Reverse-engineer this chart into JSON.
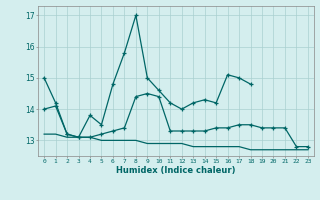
{
  "x": [
    0,
    1,
    2,
    3,
    4,
    5,
    6,
    7,
    8,
    9,
    10,
    11,
    12,
    13,
    14,
    15,
    16,
    17,
    18,
    19,
    20,
    21,
    22,
    23
  ],
  "line1": [
    15.0,
    14.2,
    13.2,
    13.1,
    13.8,
    13.5,
    14.8,
    15.8,
    17.0,
    15.0,
    14.6,
    14.2,
    14.0,
    14.2,
    14.3,
    14.2,
    15.1,
    15.0,
    14.8,
    null,
    null,
    null,
    null,
    null
  ],
  "line2": [
    14.0,
    14.1,
    13.2,
    13.1,
    13.1,
    13.2,
    13.3,
    13.4,
    14.4,
    14.5,
    14.4,
    13.3,
    13.3,
    13.3,
    13.3,
    13.4,
    13.4,
    13.5,
    13.5,
    13.4,
    13.4,
    13.4,
    12.8,
    12.8
  ],
  "line3": [
    13.2,
    13.2,
    13.1,
    13.1,
    13.1,
    13.0,
    13.0,
    13.0,
    13.0,
    12.9,
    12.9,
    12.9,
    12.9,
    12.8,
    12.8,
    12.8,
    12.8,
    12.8,
    12.7,
    12.7,
    12.7,
    12.7,
    12.7,
    12.7
  ],
  "ylim": [
    12.5,
    17.3
  ],
  "yticks": [
    13,
    14,
    15,
    16,
    17
  ],
  "xlabel": "Humidex (Indice chaleur)",
  "line_color": "#006666",
  "bg_color": "#d4eeee",
  "grid_color": "#aad0d0",
  "spine_color": "#888888"
}
